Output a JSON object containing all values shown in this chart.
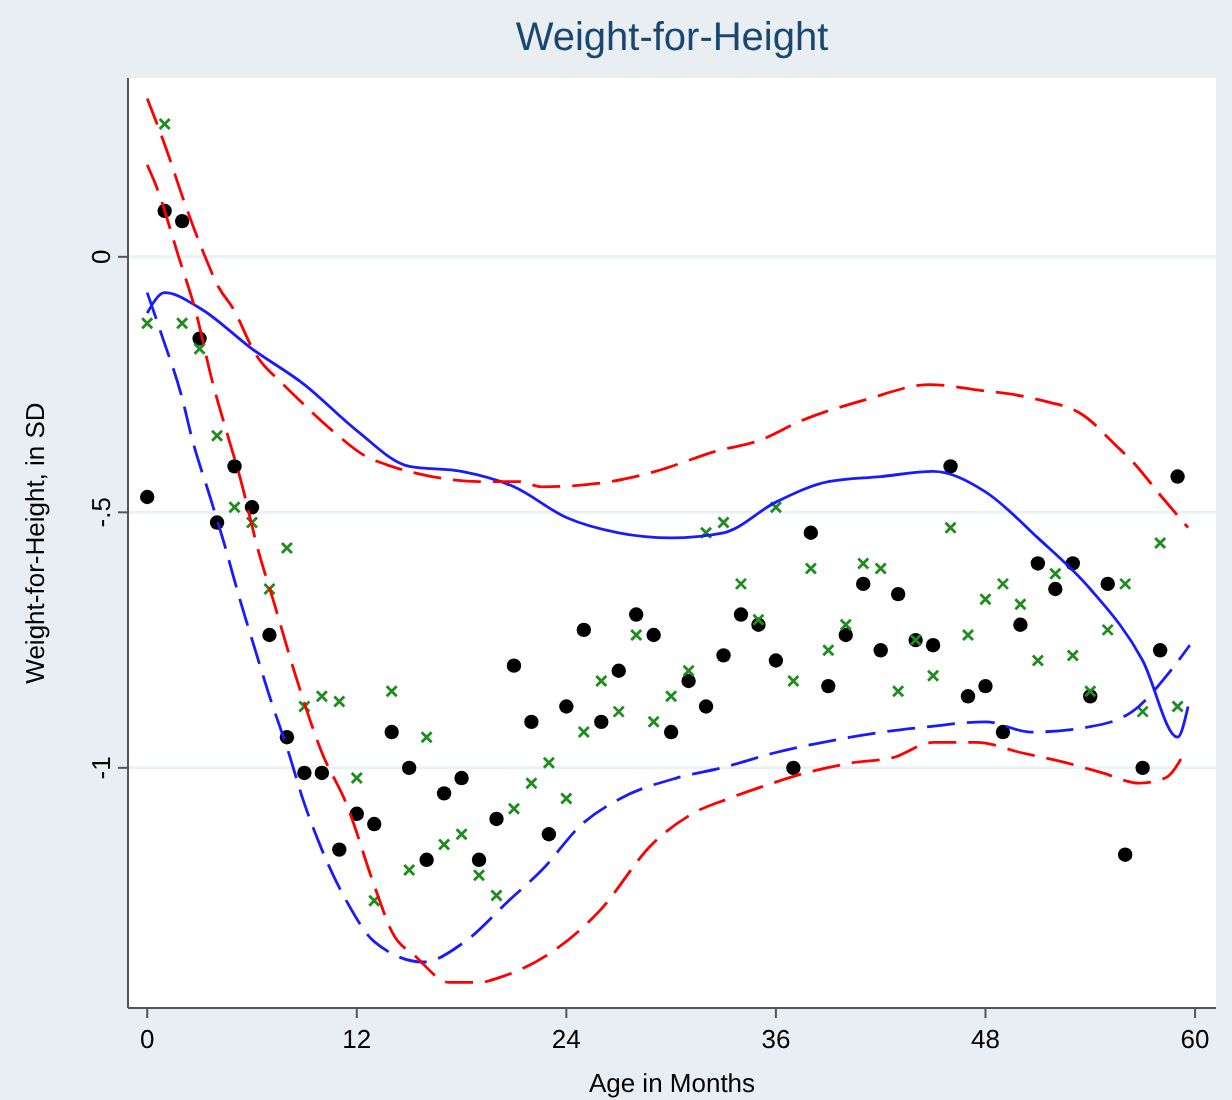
{
  "chart_data": {
    "type": "scatter",
    "title": "Weight-for-Height",
    "xlabel": "Age in Months",
    "ylabel": "Weight-for-Height, in SD",
    "xlim": [
      -1.1,
      61.2
    ],
    "xticks": [
      0,
      12,
      24,
      36,
      48,
      60
    ],
    "ylim": [
      -1.47,
      0.35
    ],
    "yticks": [
      0,
      {
        "value": -0.5,
        "label": "-.5"
      },
      -1
    ],
    "grid": "y",
    "x": [
      0,
      1,
      2,
      3,
      4,
      5,
      6,
      7,
      8,
      9,
      10,
      11,
      12,
      13,
      14,
      15,
      16,
      17,
      18,
      19,
      20,
      21,
      22,
      23,
      24,
      25,
      26,
      27,
      28,
      29,
      30,
      31,
      32,
      33,
      34,
      35,
      36,
      37,
      38,
      39,
      40,
      41,
      42,
      43,
      44,
      45,
      46,
      47,
      48,
      49,
      50,
      51,
      52,
      53,
      54,
      55,
      56,
      57,
      58,
      59
    ],
    "series": [
      {
        "marker": "circle",
        "color": "#000000",
        "values": [
          -0.47,
          0.09,
          0.07,
          -0.16,
          -0.52,
          -0.41,
          -0.49,
          -0.74,
          -0.94,
          -1.01,
          -1.01,
          -1.16,
          -1.09,
          -1.11,
          -0.93,
          -1.0,
          -1.18,
          -1.05,
          -1.02,
          -1.18,
          -1.1,
          -0.8,
          -0.91,
          -1.13,
          -0.88,
          -0.73,
          -0.91,
          -0.81,
          -0.7,
          -0.74,
          -0.93,
          -0.83,
          -0.88,
          -0.78,
          -0.7,
          -0.72,
          -0.79,
          -1.0,
          -0.54,
          -0.84,
          -0.74,
          -0.64,
          -0.77,
          -0.66,
          -0.75,
          -0.76,
          -0.41,
          -0.86,
          -0.84,
          -0.93,
          -0.72,
          -0.6,
          -0.65,
          -0.6,
          -0.86,
          -0.64,
          -1.17,
          -1.0,
          -0.77,
          -0.43
        ]
      },
      {
        "marker": "cross",
        "color": "#1e8c1e",
        "values": [
          -0.13,
          0.26,
          -0.13,
          -0.18,
          -0.35,
          -0.49,
          -0.52,
          -0.65,
          -0.57,
          -0.88,
          -0.86,
          -0.87,
          -1.02,
          -1.26,
          -0.85,
          -1.2,
          -0.94,
          -1.15,
          -1.13,
          -1.21,
          -1.25,
          -1.08,
          -1.03,
          -0.99,
          -1.06,
          -0.93,
          -0.83,
          -0.89,
          -0.74,
          -0.91,
          -0.86,
          -0.81,
          -0.54,
          -0.52,
          -0.64,
          -0.71,
          -0.49,
          -0.83,
          -0.61,
          -0.77,
          -0.72,
          -0.6,
          -0.61,
          -0.85,
          -0.75,
          -0.82,
          -0.53,
          -0.74,
          -0.67,
          -0.64,
          -0.68,
          -0.79,
          -0.62,
          -0.78,
          -0.85,
          -0.73,
          -0.64,
          -0.89,
          -0.56,
          -0.88
        ]
      },
      {
        "type": "line",
        "line_style": "solid",
        "color": "#1a1aff",
        "x": [
          0,
          1,
          3,
          6,
          9,
          12,
          15,
          18,
          21,
          24,
          27,
          30,
          33,
          36,
          39,
          42,
          45,
          48,
          51,
          54,
          57,
          59,
          59.6
        ],
        "values": [
          -0.11,
          -0.07,
          -0.1,
          -0.18,
          -0.25,
          -0.34,
          -0.41,
          -0.42,
          -0.45,
          -0.51,
          -0.54,
          -0.55,
          -0.54,
          -0.48,
          -0.44,
          -0.43,
          -0.42,
          -0.46,
          -0.55,
          -0.65,
          -0.79,
          -0.94,
          -0.88
        ]
      },
      {
        "type": "line",
        "line_style": "dashed",
        "color": "#1a1aff",
        "x": [
          0,
          0.9,
          1.95,
          2.6,
          3.6,
          4.4,
          5.3,
          6.1,
          7.1,
          8,
          9,
          10,
          11.4,
          13,
          15.8,
          18.2,
          20.7,
          22.6,
          24.9,
          27.1,
          30.3,
          32.9,
          36,
          38.7,
          42.1,
          44.6,
          48,
          50.6,
          53.9,
          56.4,
          58.6,
          59.7
        ],
        "values": [
          -0.07,
          -0.16,
          -0.27,
          -0.36,
          -0.47,
          -0.56,
          -0.67,
          -0.76,
          -0.87,
          -0.96,
          -1.07,
          -1.16,
          -1.26,
          -1.34,
          -1.38,
          -1.34,
          -1.26,
          -1.2,
          -1.11,
          -1.06,
          -1.02,
          -1.0,
          -0.97,
          -0.95,
          -0.93,
          -0.92,
          -0.91,
          -0.93,
          -0.92,
          -0.89,
          -0.81,
          -0.76
        ]
      },
      {
        "type": "line",
        "line_style": "dashed",
        "color": "#ff0000",
        "x": [
          0,
          1,
          2.2,
          3.2,
          4.1,
          4.9,
          6.2,
          7.8,
          8.7,
          10.6,
          12.5,
          14,
          16.3,
          19,
          21.3,
          22.6,
          26.5,
          29.1,
          32.6,
          35,
          37.5,
          41.1,
          44.8,
          47.4,
          51.1,
          53.6,
          55.5,
          56.4,
          58.1,
          59.6
        ],
        "values": [
          0.31,
          0.22,
          0.1,
          0.01,
          -0.06,
          -0.1,
          -0.19,
          -0.25,
          -0.28,
          -0.34,
          -0.39,
          -0.41,
          -0.43,
          -0.44,
          -0.44,
          -0.45,
          -0.44,
          -0.42,
          -0.38,
          -0.36,
          -0.32,
          -0.28,
          -0.25,
          -0.26,
          -0.28,
          -0.31,
          -0.37,
          -0.4,
          -0.47,
          -0.53
        ]
      },
      {
        "type": "line",
        "line_style": "dashed",
        "color": "#ff0000",
        "x": [
          0,
          0.5,
          1.8,
          2.8,
          3.7,
          4.7,
          5.3,
          6.4,
          7.2,
          8.5,
          10,
          11.4,
          13.1,
          14,
          15.4,
          17.3,
          19,
          20.2,
          25.9,
          28.9,
          31.2,
          33.3,
          35.8,
          37.7,
          40.4,
          42.7,
          45,
          47.5,
          50,
          52.6,
          54.7,
          56.8,
          58.3,
          59.4
        ],
        "values": [
          0.18,
          0.14,
          0.0,
          -0.11,
          -0.24,
          -0.36,
          -0.43,
          -0.58,
          -0.67,
          -0.82,
          -0.97,
          -1.07,
          -1.24,
          -1.32,
          -1.37,
          -1.42,
          -1.42,
          -1.41,
          -1.28,
          -1.15,
          -1.09,
          -1.06,
          -1.03,
          -1.01,
          -0.99,
          -0.98,
          -0.95,
          -0.95,
          -0.97,
          -0.99,
          -1.01,
          -1.03,
          -1.02,
          -0.97
        ]
      }
    ]
  }
}
